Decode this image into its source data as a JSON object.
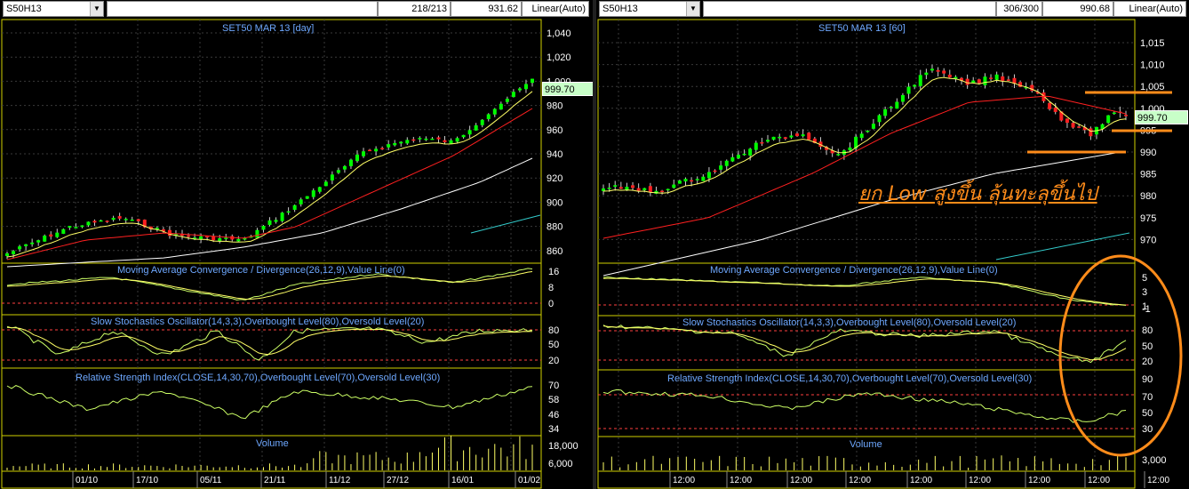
{
  "left": {
    "symbol": "S50H13",
    "bars_count": "218/213",
    "last_value": "931.62",
    "scale": "Linear(Auto)",
    "title": "SET50 MAR 13   [day]",
    "price_label": "999.70",
    "price_ticks": [
      "1,040",
      "1,020",
      "1,000",
      "980",
      "960",
      "940",
      "920",
      "900",
      "880",
      "860"
    ],
    "macd_ticks": [
      "16",
      "8",
      "0"
    ],
    "stoch_ticks": [
      "80",
      "50",
      "20"
    ],
    "rsi_ticks": [
      "70",
      "58",
      "46",
      "34"
    ],
    "vol_ticks": [
      "18,000",
      "6,000"
    ],
    "macd_title": "Moving Average Convergence / Divergence(26,12,9),Value Line(0)",
    "stoch_title": "Slow Stochastics Oscillator(14,3,3),Overbought Level(80),Oversold Level(20)",
    "rsi_title": "Relative Strength Index(CLOSE,14,30,70),Overbought Level(70),Oversold Level(30)",
    "vol_title": "Volume",
    "dates": [
      "01/10",
      "17/10",
      "05/11",
      "21/11",
      "11/12",
      "27/12",
      "16/01",
      "01/02"
    ]
  },
  "right": {
    "symbol": "S50H13",
    "bars_count": "306/300",
    "last_value": "990.68",
    "scale": "Linear(Auto)",
    "title": "SET50 MAR 13   [60]",
    "price_label": "999.70",
    "price_ticks": [
      "1,015",
      "1,010",
      "1,005",
      "1,000",
      "995",
      "990",
      "985",
      "980",
      "975",
      "970"
    ],
    "macd_ticks": [
      "5",
      "3",
      "1",
      "-1"
    ],
    "stoch_ticks": [
      "80",
      "50",
      "20"
    ],
    "rsi_ticks": [
      "90",
      "70",
      "50",
      "30"
    ],
    "vol_ticks": [
      "3,000"
    ],
    "macd_title": "Moving Average Convergence / Divergence(26,12,9),Value Line(0)",
    "stoch_title": "Slow Stochastics Oscillator(14,3,3),Overbought Level(80),Oversold Level(20)",
    "rsi_title": "Relative Strength Index(CLOSE,14,30,70),Overbought Level(70),Oversold Level(30)",
    "vol_title": "Volume",
    "dates": [
      "12:00",
      "12:00",
      "12:00",
      "12:00",
      "12:00",
      "12:00",
      "12:00",
      "12:00",
      "12:00"
    ],
    "annotation": "ยก Low สูงขึ้น ลุ้นทะลุขึ้นไป"
  },
  "colors": {
    "up": "#00ff00",
    "down": "#ff2020",
    "ma_fast": "#ffff66",
    "ma_mid": "#ff2020",
    "ma_slow": "#ffffff",
    "ma_long": "#33cccc",
    "indicator": "#ccff66",
    "signal": "#ffff66",
    "level": "#ff4040",
    "annotation": "#ff8c1a",
    "title": "#6ea8ff"
  }
}
